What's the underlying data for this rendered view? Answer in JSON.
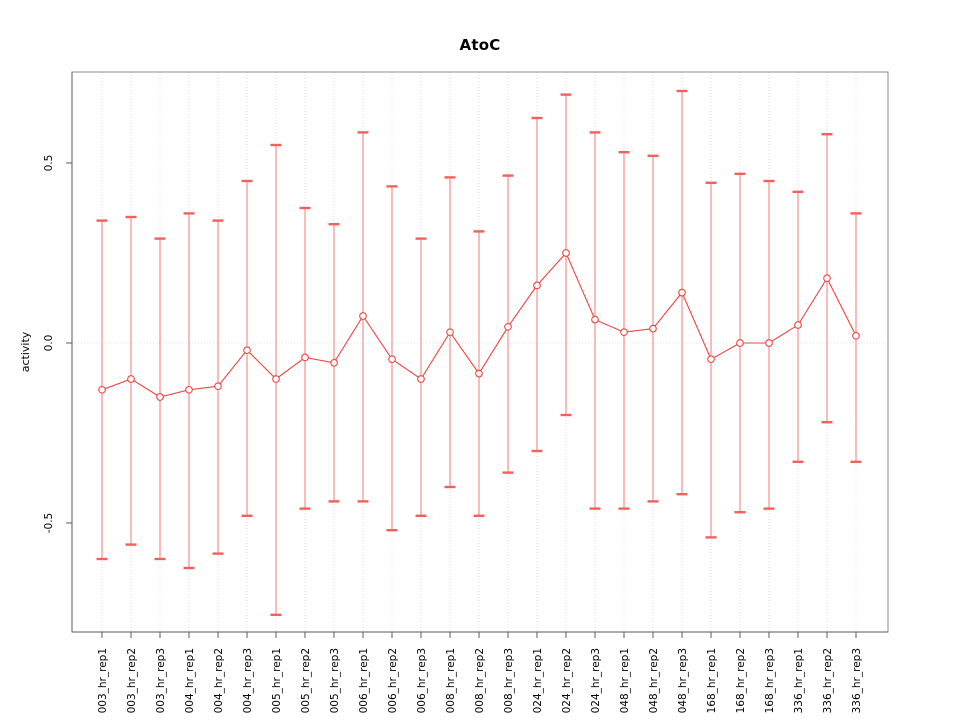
{
  "title": "AtoC",
  "y_axis": {
    "label": "activity",
    "ticks": [
      {
        "label": "-0.5",
        "value": -0.5
      },
      {
        "label": "0.0",
        "value": 0.0
      },
      {
        "label": "0.5",
        "value": 0.5
      }
    ]
  },
  "chart_data": {
    "type": "line",
    "title": "AtoC",
    "xlabel": "",
    "ylabel": "activity",
    "ylim": [
      -0.8,
      0.75
    ],
    "grid": "dotted vertical line per category; dotted horizontal line at y=0",
    "legend_position": "none",
    "categories": [
      "003_hr_rep1",
      "003_hr_rep2",
      "003_hr_rep3",
      "004_hr_rep1",
      "004_hr_rep2",
      "004_hr_rep3",
      "005_hr_rep1",
      "005_hr_rep2",
      "005_hr_rep3",
      "006_hr_rep1",
      "006_hr_rep2",
      "006_hr_rep3",
      "008_hr_rep1",
      "008_hr_rep2",
      "008_hr_rep3",
      "024_hr_rep1",
      "024_hr_rep2",
      "024_hr_rep3",
      "048_hr_rep1",
      "048_hr_rep2",
      "048_hr_rep3",
      "168_hr_rep1",
      "168_hr_rep2",
      "168_hr_rep3",
      "336_hr_rep1",
      "336_hr_rep2",
      "336_hr_rep3"
    ],
    "series": [
      {
        "name": "activity",
        "marker": "open-circle",
        "values": [
          -0.13,
          -0.1,
          -0.15,
          -0.13,
          -0.12,
          -0.02,
          -0.1,
          -0.04,
          -0.055,
          0.075,
          -0.045,
          -0.1,
          0.03,
          -0.085,
          0.045,
          0.16,
          0.25,
          0.065,
          0.03,
          0.04,
          0.14,
          -0.045,
          0.0,
          0.0,
          0.05,
          0.18,
          0.02
        ],
        "error_upper": [
          0.34,
          0.35,
          0.29,
          0.36,
          0.34,
          0.45,
          0.55,
          0.375,
          0.33,
          0.585,
          0.435,
          0.29,
          0.46,
          0.31,
          0.465,
          0.625,
          0.69,
          0.585,
          0.53,
          0.52,
          0.7,
          0.445,
          0.47,
          0.45,
          0.42,
          0.58,
          0.36
        ],
        "error_lower": [
          -0.6,
          -0.56,
          -0.6,
          -0.625,
          -0.585,
          -0.48,
          -0.755,
          -0.46,
          -0.44,
          -0.44,
          -0.52,
          -0.48,
          -0.4,
          -0.48,
          -0.36,
          -0.3,
          -0.2,
          -0.46,
          -0.46,
          -0.44,
          -0.42,
          -0.54,
          -0.47,
          -0.46,
          -0.33,
          -0.22,
          -0.33
        ]
      }
    ],
    "colors": {
      "series": "#ef4440",
      "error_bar": "#f59996",
      "error_cap": "#f2605c",
      "grid": "#dedede",
      "zero_line": "#e4e4e4",
      "box": "#8c8c8c",
      "axis": "#5a5a5a",
      "text": "#000000"
    }
  }
}
